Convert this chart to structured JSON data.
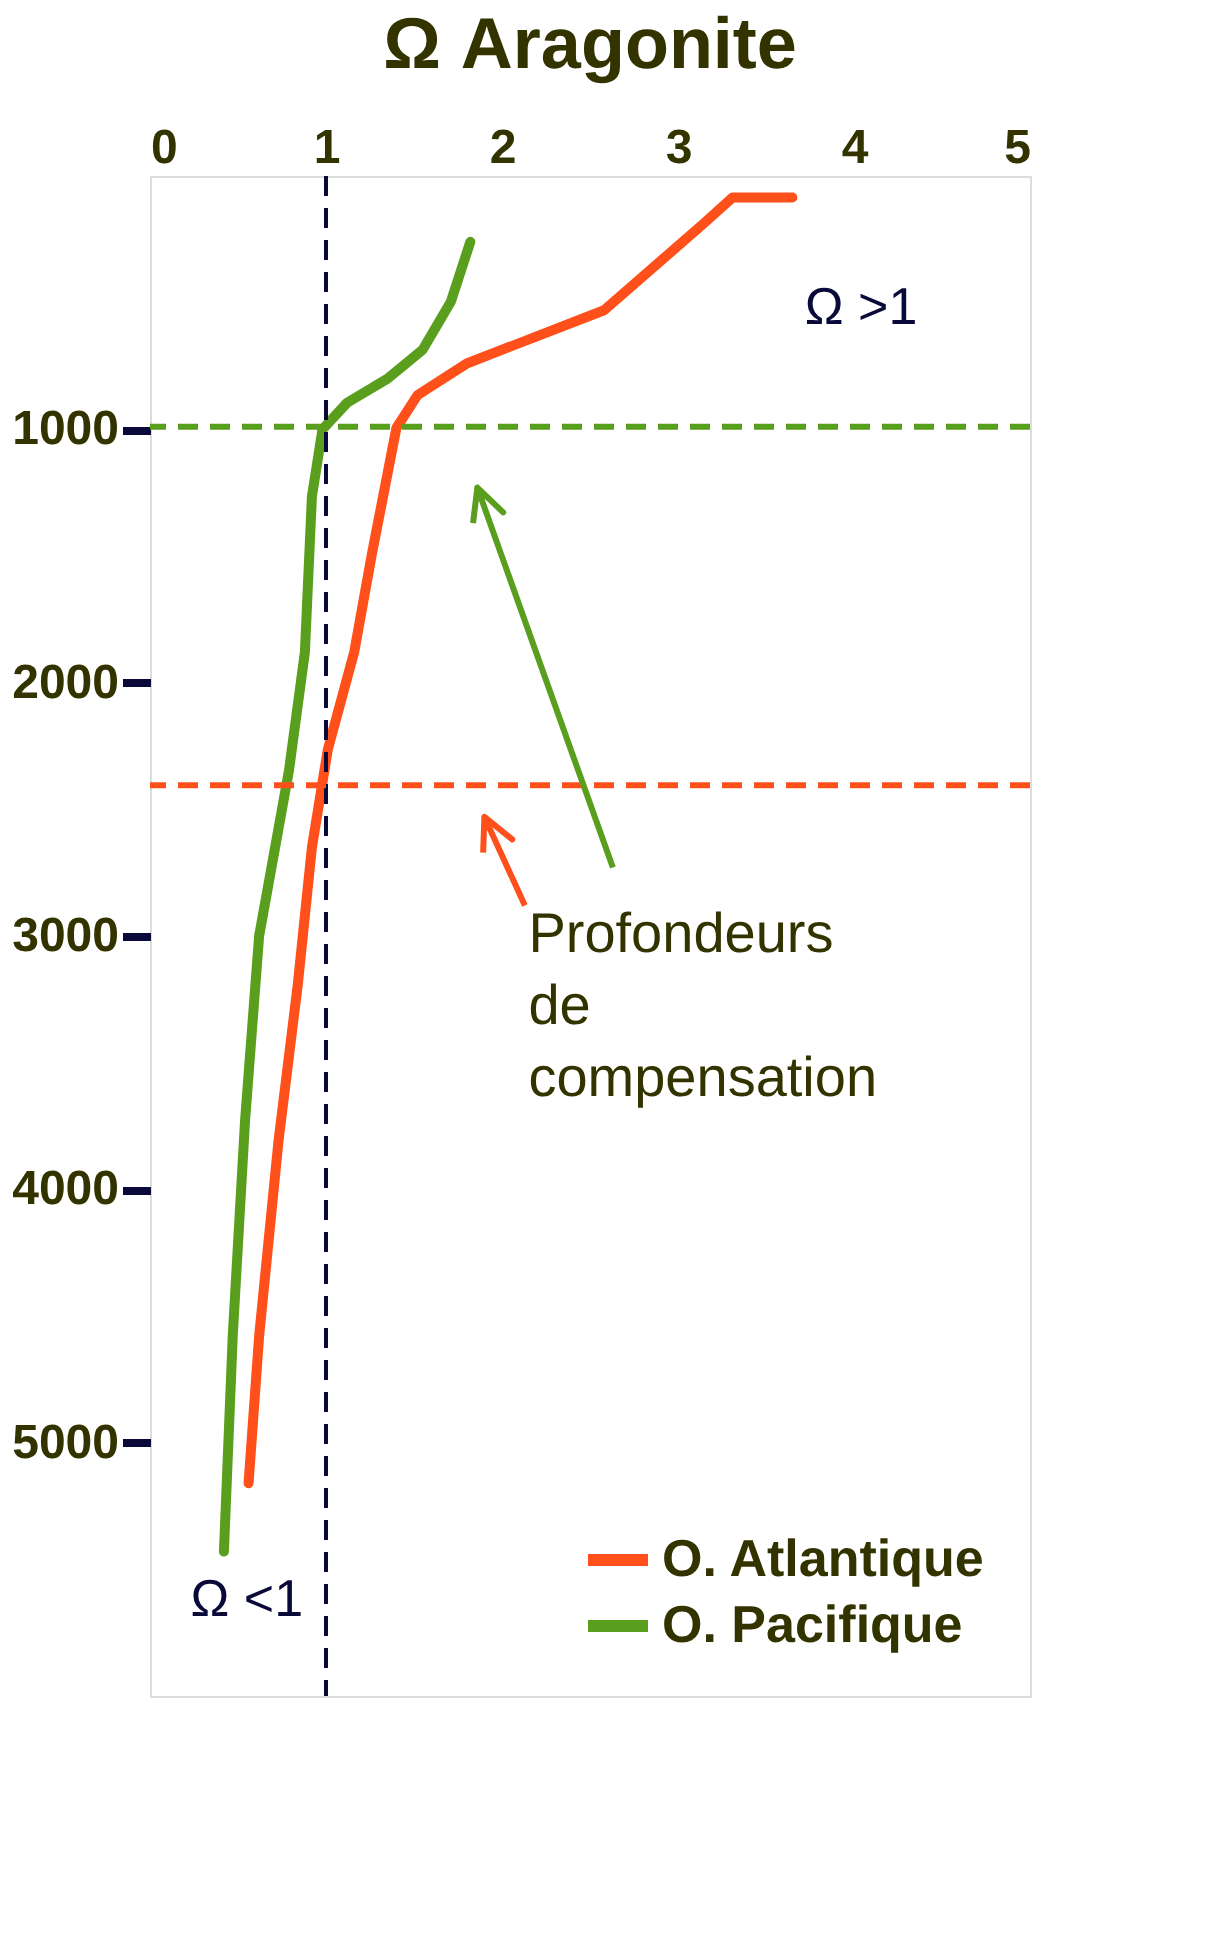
{
  "chart_data": {
    "type": "line",
    "title": "Ω Aragonite",
    "xlim": [
      0,
      5
    ],
    "xticks": [
      0,
      1,
      2,
      3,
      4,
      5
    ],
    "ylim": [
      6000,
      0
    ],
    "yticks": [
      1000,
      2000,
      3000,
      4000,
      5000
    ],
    "series": [
      {
        "name": "O. Atlantique",
        "color": "#ff4f1a",
        "x": [
          3.65,
          3.31,
          3.15,
          2.58,
          1.8,
          1.52,
          1.4,
          1.26,
          1.16,
          1.01,
          0.92,
          0.84,
          0.73,
          0.62,
          0.56
        ],
        "values": [
          85,
          85,
          185,
          530,
          740,
          865,
          995,
          1495,
          1880,
          2265,
          2650,
          3190,
          3810,
          4580,
          5160
        ]
      },
      {
        "name": "O. Pacifique",
        "color": "#5a9e1e",
        "x": [
          1.82,
          1.71,
          1.55,
          1.35,
          1.12,
          0.98,
          0.92,
          0.88,
          0.79,
          0.62,
          0.54,
          0.47,
          0.42
        ],
        "values": [
          260,
          495,
          685,
          800,
          895,
          1000,
          1265,
          1880,
          2345,
          3000,
          3730,
          4580,
          5430
        ]
      }
    ],
    "ref_lines": [
      {
        "axis": "x",
        "value": 1,
        "color": "#0a0a3a",
        "line_style": "dashed"
      },
      {
        "axis": "y",
        "value": 990,
        "color": "#5a9e1e",
        "line_style": "dashed"
      },
      {
        "axis": "y",
        "value": 2405,
        "color": "#ff4f1a",
        "line_style": "dashed"
      }
    ],
    "annotations": [
      "Ω >1",
      "Ω <1",
      "Profondeurs\nde\ncompensation"
    ],
    "grid": false,
    "legend": "bottom right",
    "marker": "none",
    "line_style": "solid"
  }
}
